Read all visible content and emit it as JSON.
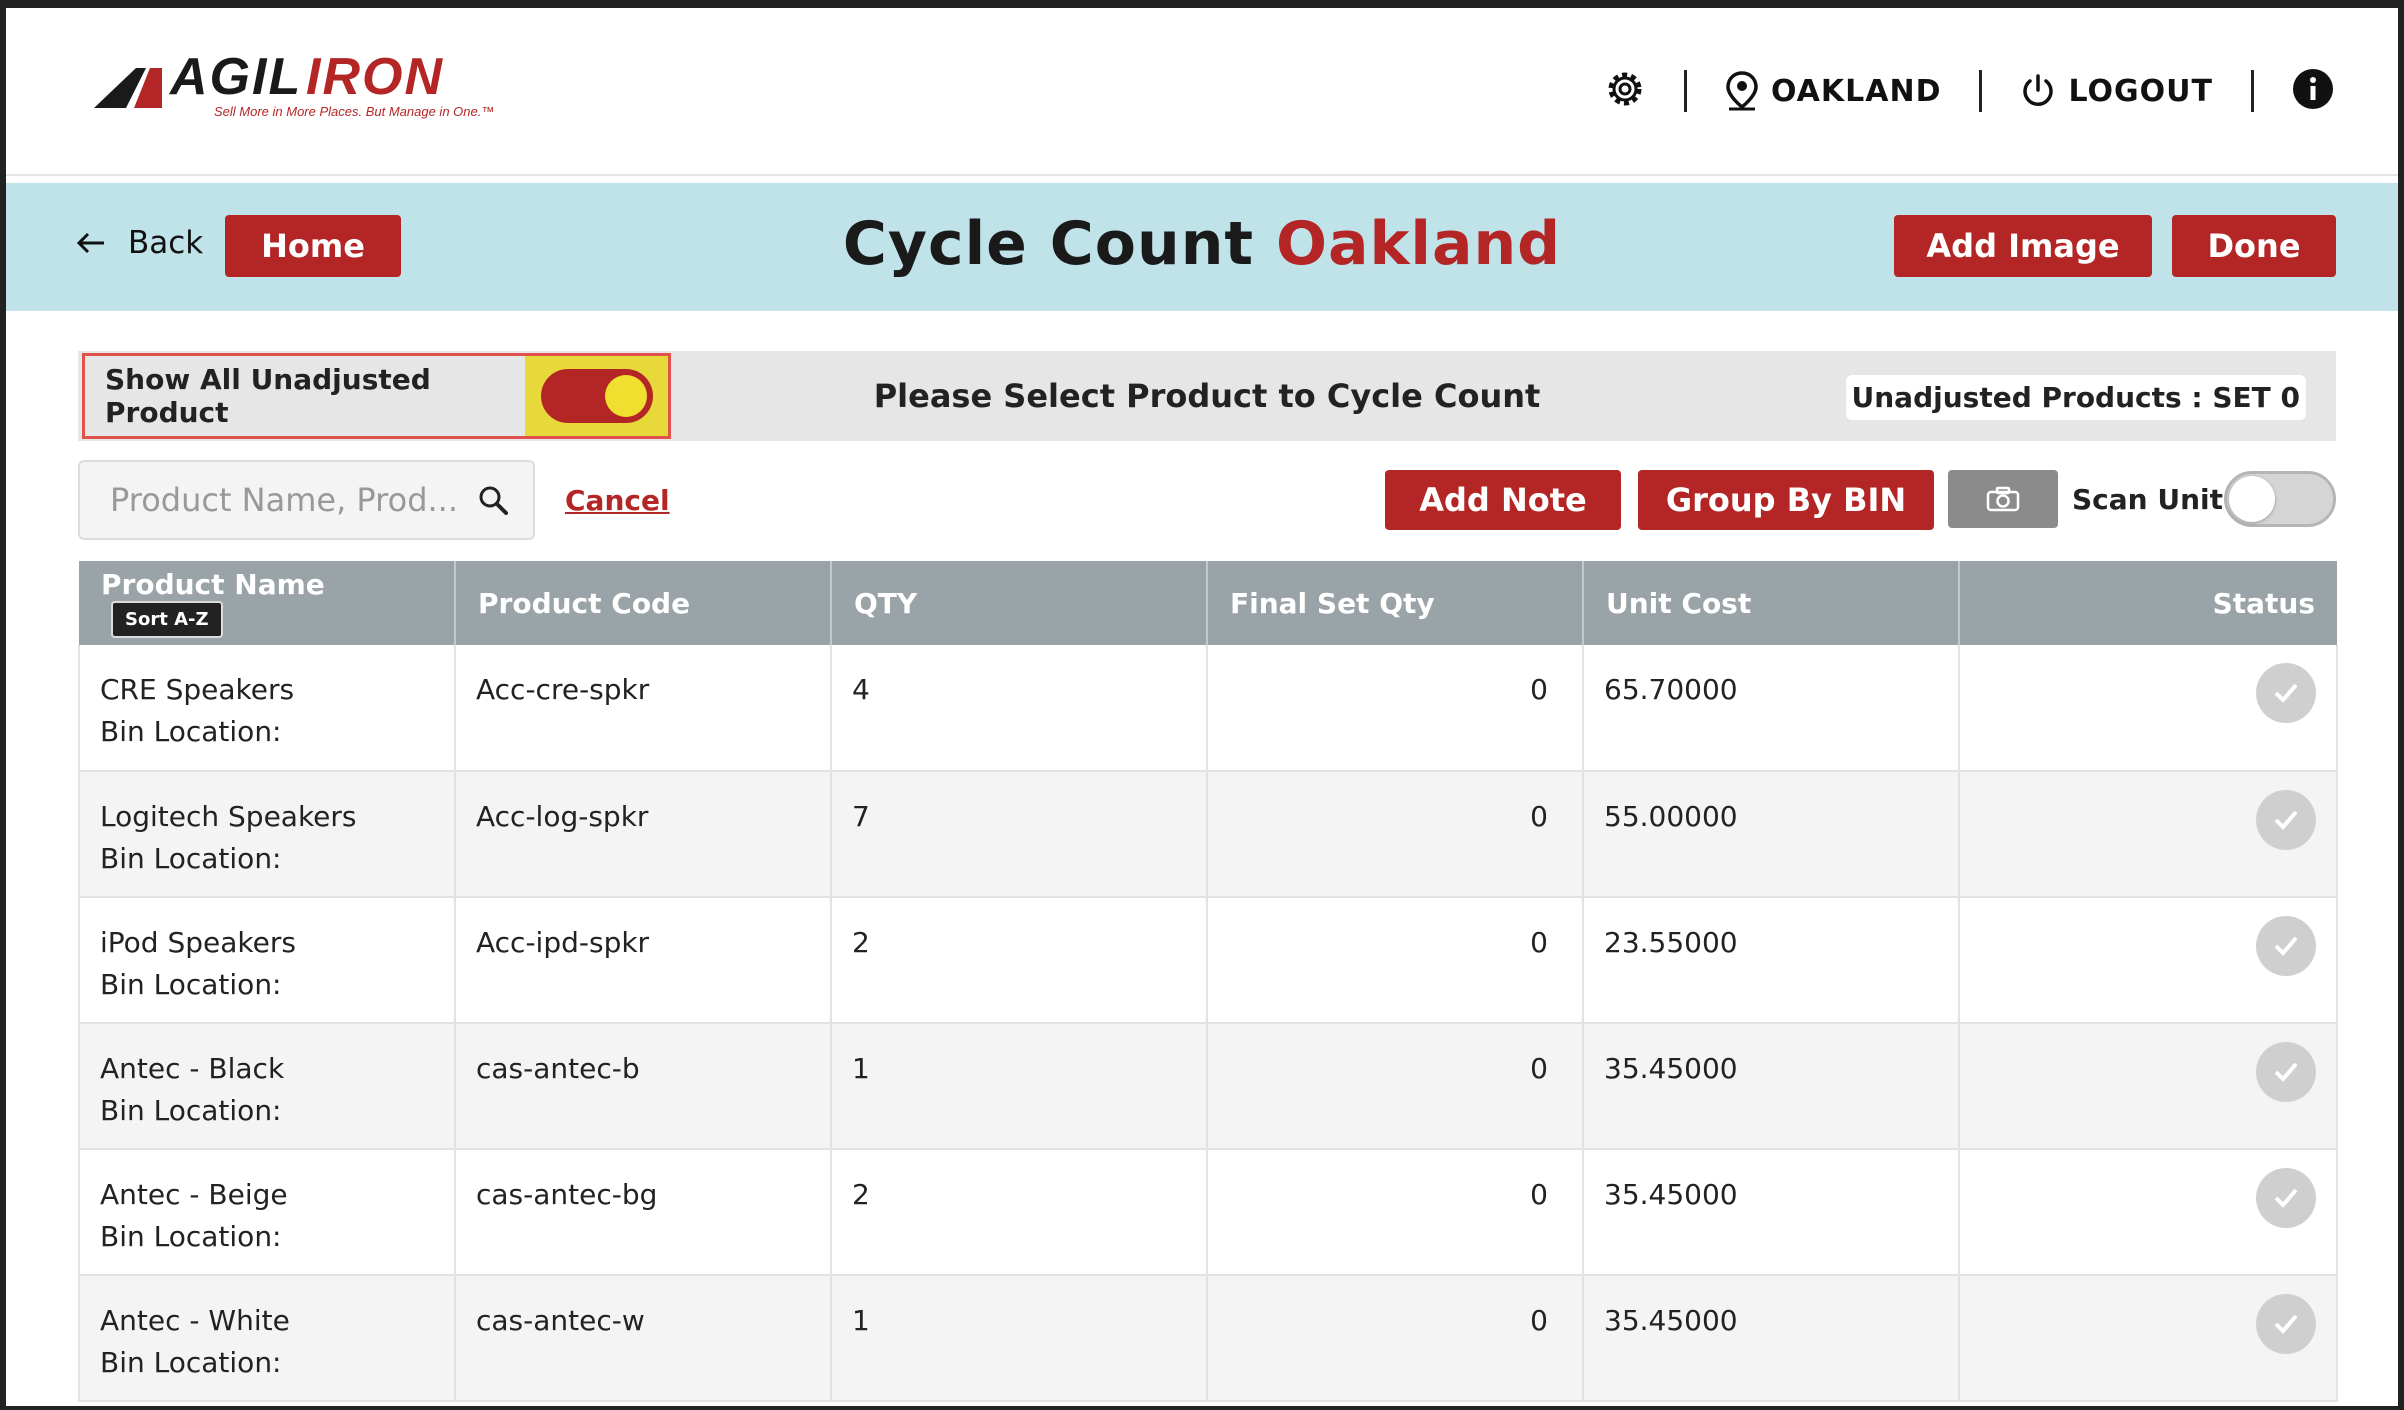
{
  "brand": {
    "name": "AGILIRON",
    "tagline": "Sell More in More Places. But Manage in One.",
    "colors": {
      "accent": "#b42626",
      "band": "#bfe3e8",
      "header": "#9aa3a8"
    }
  },
  "topnav": {
    "location": "OAKLAND",
    "logout": "LOGOUT",
    "icons": [
      "gear-icon",
      "location-pin-icon",
      "power-icon",
      "info-icon"
    ]
  },
  "header": {
    "back_label": "Back",
    "home_label": "Home",
    "title": "Cycle Count",
    "title_location": "Oakland",
    "add_image_label": "Add Image",
    "done_label": "Done"
  },
  "infobar": {
    "show_all_label": "Show All Unadjusted Product",
    "show_all_on": true,
    "message": "Please Select Product to Cycle Count",
    "unadjusted_label": "Unadjusted Products : SET 0"
  },
  "toolbar": {
    "search_placeholder": "Product Name, Prod...",
    "cancel_label": "Cancel",
    "add_note_label": "Add Note",
    "group_bin_label": "Group By BIN",
    "scan_unit_label": "Scan Unit",
    "scan_unit_on": false
  },
  "table": {
    "columns": {
      "name": "Product Name",
      "sort": "Sort A-Z",
      "code": "Product Code",
      "qty": "QTY",
      "final": "Final Set Qty",
      "cost": "Unit Cost",
      "status": "Status"
    },
    "bin_label": "Bin Location:",
    "rows": [
      {
        "name": "CRE Speakers",
        "bin": "Bin Location:",
        "code": "Acc-cre-spkr",
        "qty": "4",
        "final": "0",
        "cost": "65.70000"
      },
      {
        "name": "Logitech Speakers",
        "bin": "Bin Location:",
        "code": "Acc-log-spkr",
        "qty": "7",
        "final": "0",
        "cost": "55.00000"
      },
      {
        "name": "iPod Speakers",
        "bin": "Bin Location:",
        "code": "Acc-ipd-spkr",
        "qty": "2",
        "final": "0",
        "cost": "23.55000"
      },
      {
        "name": "Antec - Black",
        "bin": "Bin Location:",
        "code": "cas-antec-b",
        "qty": "1",
        "final": "0",
        "cost": "35.45000"
      },
      {
        "name": "Antec - Beige",
        "bin": "Bin Location:",
        "code": "cas-antec-bg",
        "qty": "2",
        "final": "0",
        "cost": "35.45000"
      },
      {
        "name": "Antec - White",
        "bin": "Bin Location:",
        "code": "cas-antec-w",
        "qty": "1",
        "final": "0",
        "cost": "35.45000"
      }
    ]
  }
}
